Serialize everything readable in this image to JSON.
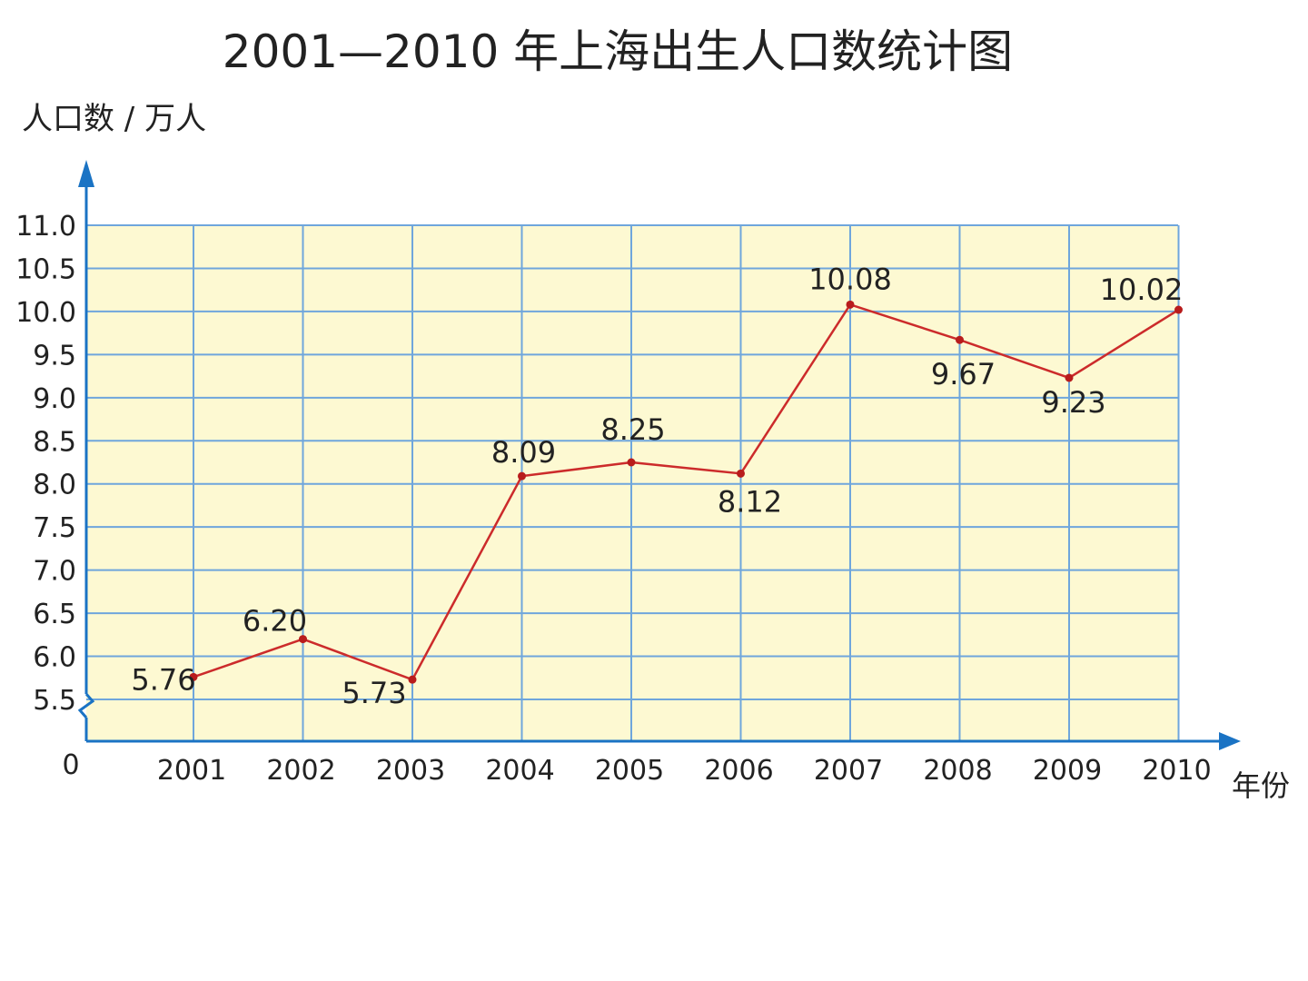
{
  "chart_data": {
    "type": "line",
    "title": "2001—2010 年上海出生人口数统计图",
    "ylabel": "人口数 / 万人",
    "xlabel": "年份",
    "origin_label": "0",
    "categories": [
      "2001",
      "2002",
      "2003",
      "2004",
      "2005",
      "2006",
      "2007",
      "2008",
      "2009",
      "2010"
    ],
    "values": [
      5.76,
      6.2,
      5.73,
      8.09,
      8.25,
      8.12,
      10.08,
      9.67,
      9.23,
      10.02
    ],
    "value_labels": [
      "5.76",
      "6.20",
      "5.73",
      "8.09",
      "8.25",
      "8.12",
      "10.08",
      "9.67",
      "9.23",
      "10.02"
    ],
    "y_ticks": [
      "5.5",
      "6.0",
      "6.5",
      "7.0",
      "7.5",
      "8.0",
      "8.5",
      "9.0",
      "9.5",
      "10.0",
      "10.5",
      "11.0"
    ],
    "ylim": [
      5.0,
      11.0
    ],
    "axis_break": true,
    "grid": true,
    "colors": {
      "line": "#cc2b2b",
      "marker": "#b81c1c",
      "grid": "#6fa6dc",
      "plot_bg": "#fdf9d2",
      "axis": "#1a73c4"
    }
  }
}
